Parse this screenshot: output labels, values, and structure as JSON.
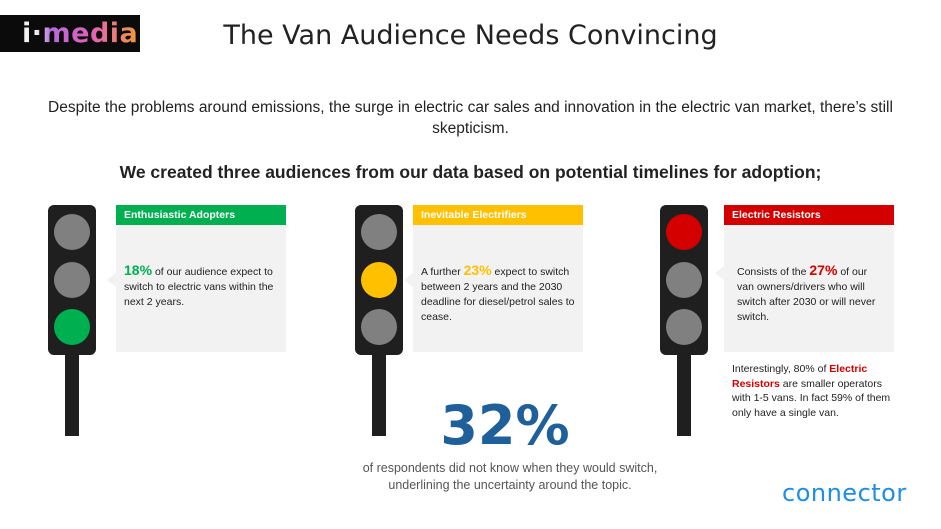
{
  "brand": {
    "logo": "i·media",
    "footer_logo": "connector"
  },
  "title": "The Van Audience Needs Convincing",
  "intro": "Despite the problems around emissions, the surge in electric car sales and innovation in the electric van market, there’s still skepticism.",
  "subhead": "We created three audiences from our data based on potential timelines for adoption;",
  "audiences": [
    {
      "name": "Enthusiastic Adopters",
      "color": "#00b050",
      "active_lamp": "green",
      "percent": "18%",
      "text_before": "",
      "text_after": " of our audience expect to switch to electric vans within the next 2 years."
    },
    {
      "name": "Inevitable Electrifiers",
      "color": "#ffc000",
      "active_lamp": "amber",
      "percent": "23%",
      "text_before": "A further ",
      "text_after": " expect to switch between 2 years and the 2030 deadline for diesel/petrol sales to cease."
    },
    {
      "name": "Electric Resistors",
      "color": "#d40000",
      "active_lamp": "red",
      "percent": "27%",
      "text_before": "Consists of the ",
      "text_after": " of our van owners/drivers who will switch after 2030 or will never switch."
    }
  ],
  "resistor_note": {
    "before": "Interestingly, 80% of ",
    "highlight": "Electric Resistors",
    "after": " are smaller operators with 1-5 vans. In fact 59% of them only have a single van."
  },
  "headline_stat": {
    "value": "32%",
    "caption": "of respondents did not know when they would switch, underlining the uncertainty around the topic."
  },
  "colors": {
    "lamp_off": "#808080",
    "light_body": "#1f1f1f",
    "stat_blue": "#1f5f9a",
    "connector_blue": "#1e8fe0"
  }
}
